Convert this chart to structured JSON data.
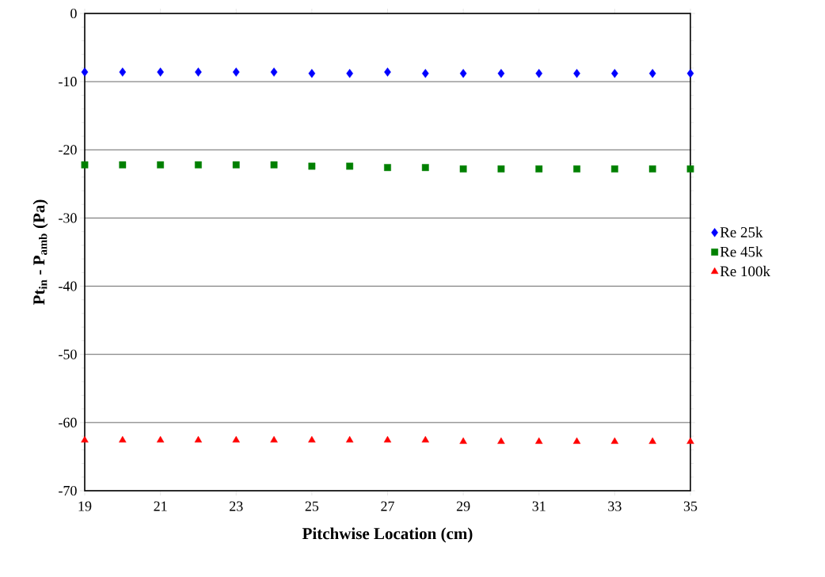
{
  "chart_data": {
    "type": "scatter",
    "xlabel": "Pitchwise Location (cm)",
    "ylabel": "**Pt$_{in}$ - P$_{amb}$ (Pa)**",
    "x": [
      19,
      20,
      21,
      22,
      23,
      24,
      25,
      26,
      27,
      28,
      29,
      30,
      31,
      32,
      33,
      34,
      35
    ],
    "series": [
      {
        "name": "Re 25k",
        "color": "#0000ff",
        "marker": "diamond",
        "values": [
          -8.6,
          -8.6,
          -8.6,
          -8.6,
          -8.6,
          -8.6,
          -8.8,
          -8.8,
          -8.6,
          -8.8,
          -8.8,
          -8.8,
          -8.8,
          -8.8,
          -8.8,
          -8.8,
          -8.8
        ]
      },
      {
        "name": "Re 45k",
        "color": "#008000",
        "marker": "square",
        "values": [
          -22.2,
          -22.2,
          -22.2,
          -22.2,
          -22.2,
          -22.2,
          -22.4,
          -22.4,
          -22.6,
          -22.6,
          -22.8,
          -22.8,
          -22.8,
          -22.8,
          -22.8,
          -22.8,
          -22.8
        ]
      },
      {
        "name": "Re 100k",
        "color": "#ff0000",
        "marker": "triangle",
        "values": [
          -62.6,
          -62.6,
          -62.6,
          -62.6,
          -62.6,
          -62.6,
          -62.6,
          -62.6,
          -62.6,
          -62.6,
          -62.8,
          -62.8,
          -62.8,
          -62.8,
          -62.8,
          -62.8,
          -62.8
        ]
      }
    ],
    "xlim": [
      19,
      35
    ],
    "xticks": [
      19,
      21,
      23,
      25,
      27,
      29,
      31,
      33,
      35
    ],
    "ylim": [
      -70,
      0
    ],
    "yticks": [
      -70,
      -60,
      -50,
      -40,
      -30,
      -20,
      -10,
      0
    ],
    "grid": "y",
    "legend": "right"
  }
}
